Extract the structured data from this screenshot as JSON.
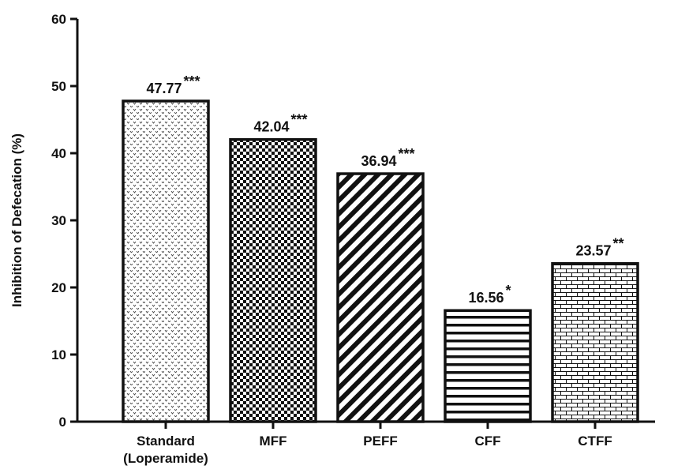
{
  "chart_data": {
    "type": "bar",
    "title": "",
    "xlabel": "",
    "ylabel": "Inhibition of Defecation (%)",
    "ylim": [
      0,
      60
    ],
    "yticks": [
      0,
      10,
      20,
      30,
      40,
      50,
      60
    ],
    "grid": false,
    "legend": "none",
    "categories": [
      {
        "label": [
          "Standard",
          "(Loperamide)"
        ],
        "value": 47.77,
        "value_label": "47.77",
        "significance": "***",
        "pattern": "chevron-dots"
      },
      {
        "label": [
          "MFF"
        ],
        "value": 42.04,
        "value_label": "42.04",
        "significance": "***",
        "pattern": "checkerboard"
      },
      {
        "label": [
          "PEFF"
        ],
        "value": 36.94,
        "value_label": "36.94",
        "significance": "***",
        "pattern": "diagonal-stripes"
      },
      {
        "label": [
          "CFF"
        ],
        "value": 16.56,
        "value_label": "16.56",
        "significance": "*",
        "pattern": "horizontal-stripes"
      },
      {
        "label": [
          "CTFF"
        ],
        "value": 23.57,
        "value_label": "23.57",
        "significance": "**",
        "pattern": "brick"
      }
    ],
    "colors": {
      "stroke": "#111111",
      "fill": "#111111",
      "background": "#ffffff"
    }
  }
}
